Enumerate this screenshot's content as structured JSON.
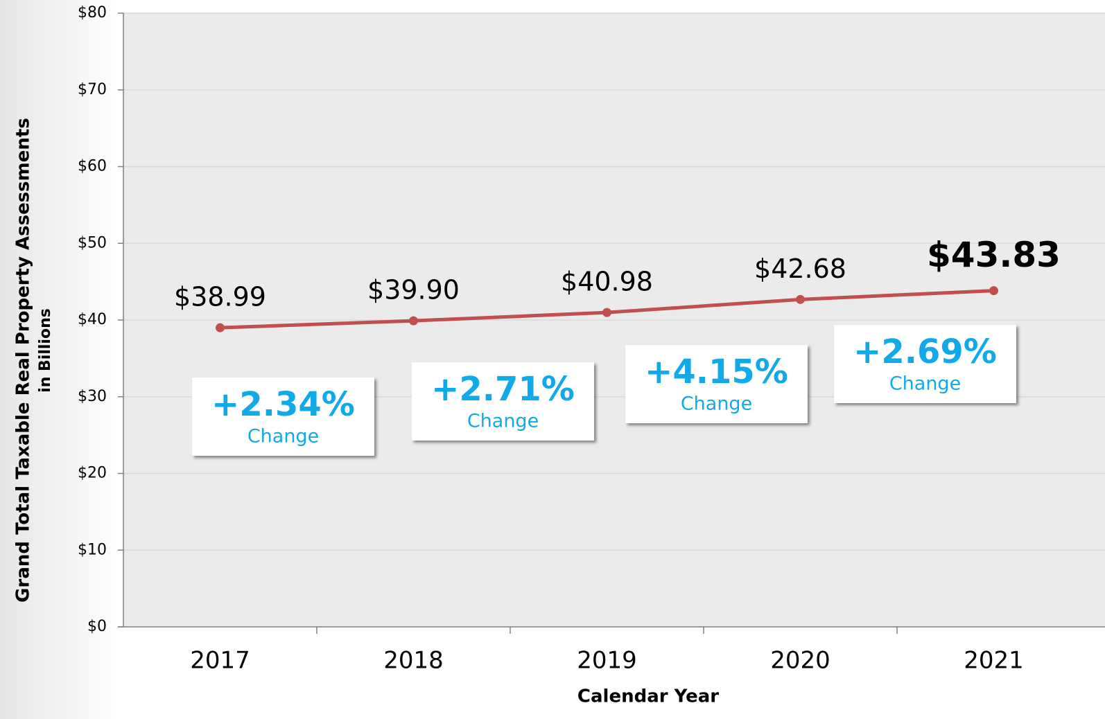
{
  "chart_data": {
    "type": "line",
    "y_label": [
      "Grand Total Taxable Real Property Assessments",
      "in Billions"
    ],
    "x_label": "Calendar Year",
    "categories": [
      "2017",
      "2018",
      "2019",
      "2020",
      "2021"
    ],
    "series": [
      {
        "name": "Grand Total Taxable Real Property Assessments",
        "color": "#c0504d",
        "values": [
          38.99,
          39.9,
          40.98,
          42.68,
          43.83
        ],
        "value_labels": [
          "$38.99",
          "$39.90",
          "$40.98",
          "$42.68",
          "$43.83"
        ]
      }
    ],
    "annotations": [
      {
        "text": "+2.34%",
        "note": "Change"
      },
      {
        "text": "+2.71%",
        "note": "Change"
      },
      {
        "text": "+4.15%",
        "note": "Change"
      },
      {
        "text": "+2.69%",
        "note": "Change"
      }
    ],
    "ylim": [
      0,
      80
    ],
    "yticks": [
      {
        "value": 0,
        "label": "$0"
      },
      {
        "value": 10,
        "label": "$10"
      },
      {
        "value": 20,
        "label": "$20"
      },
      {
        "value": 30,
        "label": "$30"
      },
      {
        "value": 40,
        "label": "$40"
      },
      {
        "value": 50,
        "label": "$50"
      },
      {
        "value": 60,
        "label": "$60"
      },
      {
        "value": 70,
        "label": "$70"
      },
      {
        "value": 80,
        "label": "$80"
      }
    ],
    "grid": true
  }
}
